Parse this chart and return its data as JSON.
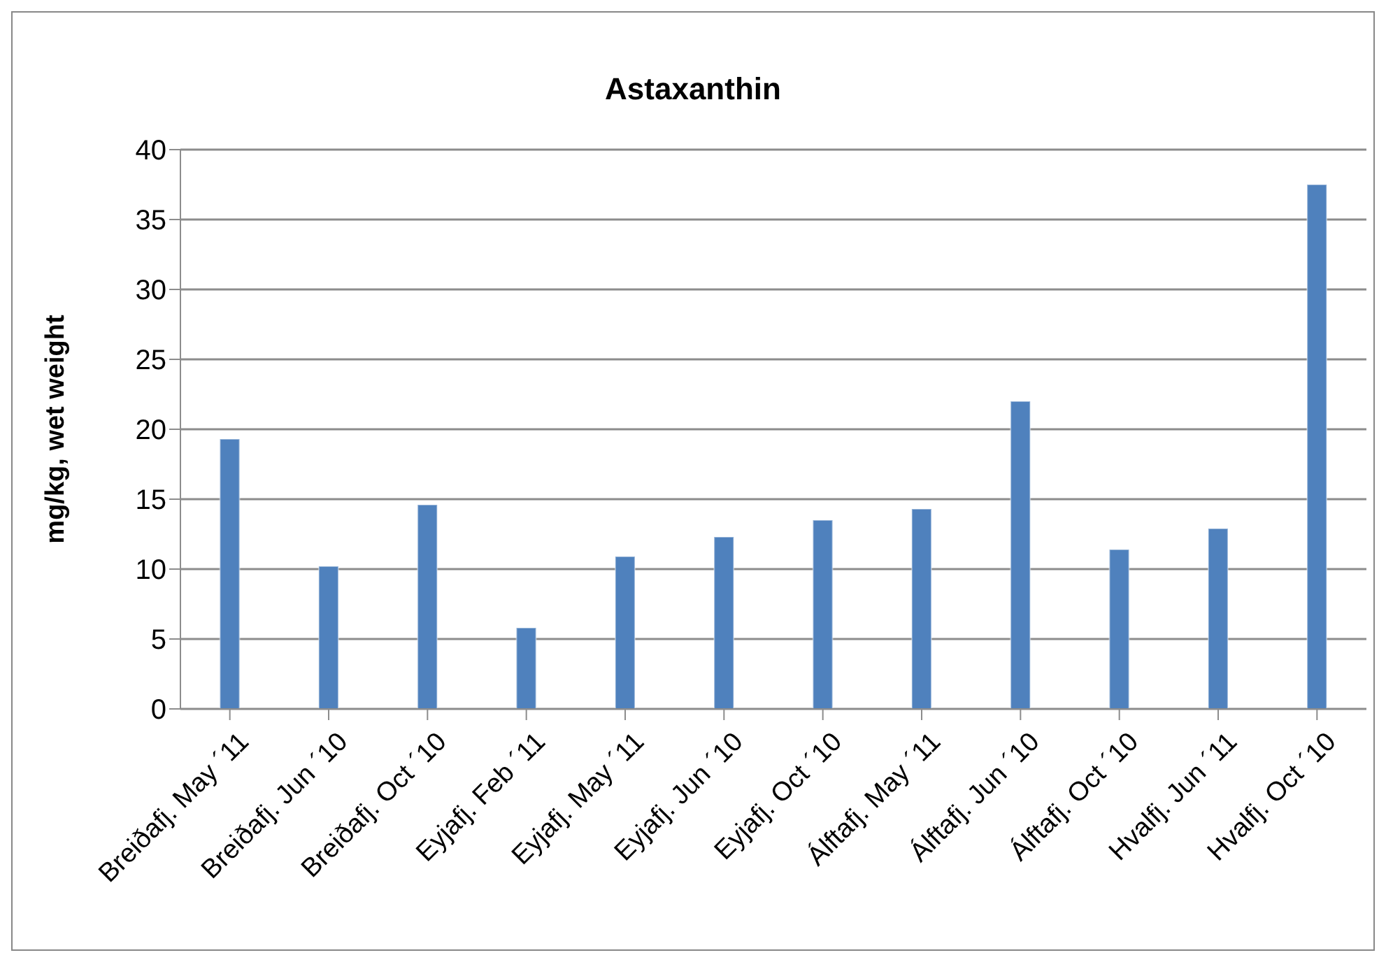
{
  "chart_data": {
    "type": "bar",
    "title": "Astaxanthin",
    "ylabel": "mg/kg, wet weight",
    "categories": [
      "Breiðafj. May ´11",
      "Breiðafj. Jun ´10",
      "Breiðafj. Oct ´10",
      "Eyjafj. Feb ´11",
      "Eyjafj. May ´11",
      "Eyjafj. Jun ´10",
      "Eyjafj. Oct ´10",
      "Álftafj. May ´11",
      "Álftafj. Jun ´10",
      "Álftafj. Oct ´10",
      "Hvalfj. Jun ´11",
      "Hvalfj. Oct ´10"
    ],
    "values": [
      19.3,
      10.2,
      14.6,
      5.8,
      10.9,
      12.3,
      13.5,
      14.3,
      22.0,
      11.4,
      12.9,
      37.5
    ],
    "color": "#4f81bd",
    "ylim": [
      0,
      40
    ],
    "yticks": [
      0,
      5,
      10,
      15,
      20,
      25,
      30,
      35,
      40
    ],
    "grid": "y",
    "legend": false
  }
}
